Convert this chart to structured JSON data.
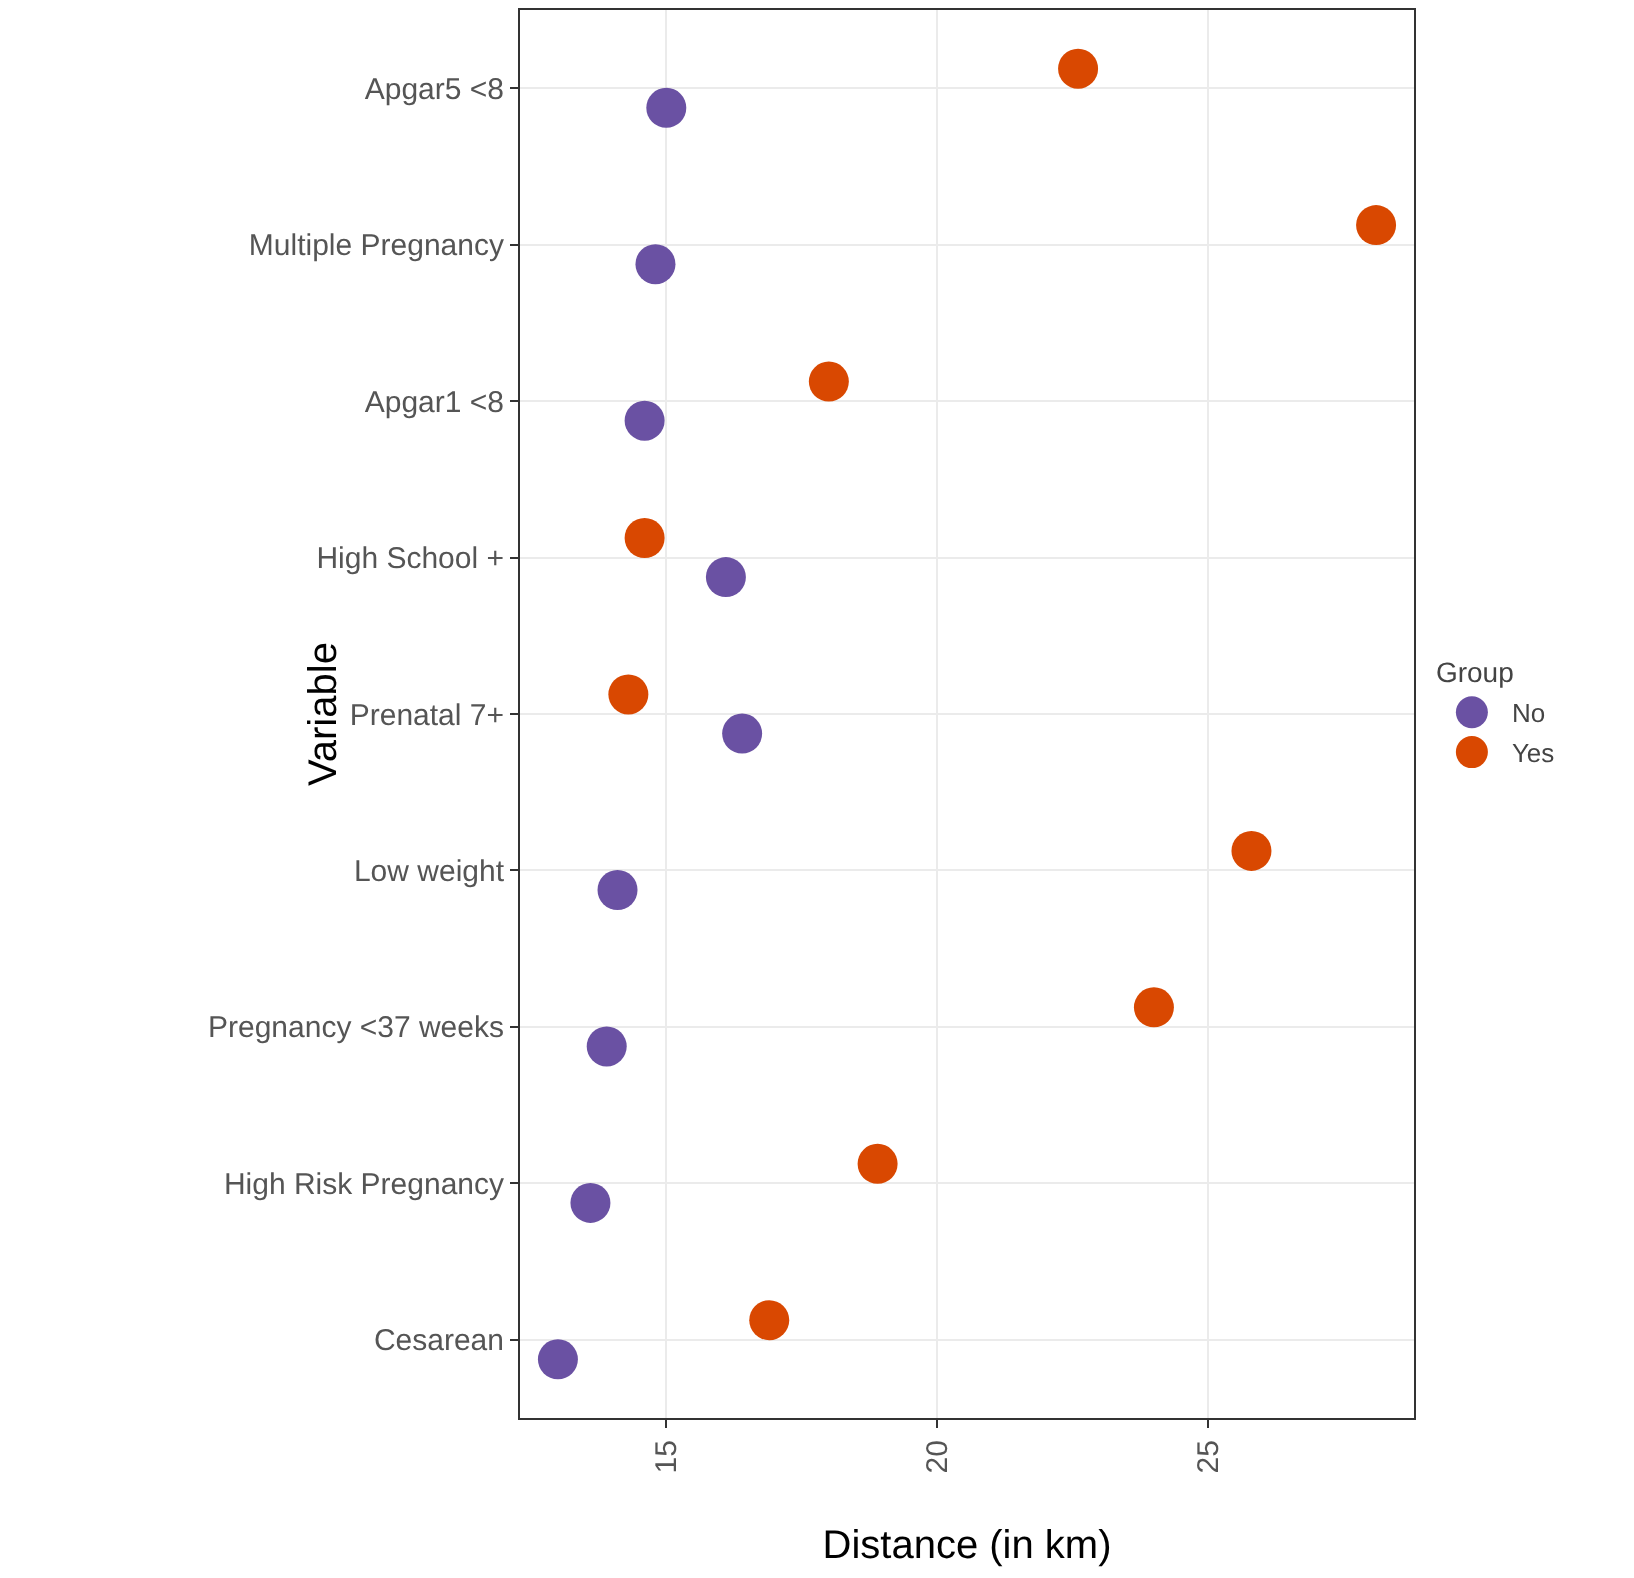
{
  "chart_data": {
    "type": "scatter",
    "xlabel": "Distance (in km)",
    "ylabel": "Variable",
    "legend_title": "Group",
    "categories": [
      "Apgar5 <8",
      "Multiple Pregnancy",
      "Apgar1 <8",
      "High School +",
      "Prenatal 7+",
      "Low weight",
      "Pregnancy <37 weeks",
      "High Risk Pregnancy",
      "Cesarean"
    ],
    "orientation": "horizontal",
    "series": [
      {
        "name": "No",
        "color": "#6a51a3",
        "values": [
          15.0,
          14.8,
          14.6,
          16.1,
          16.4,
          14.1,
          13.9,
          13.6,
          13.0
        ]
      },
      {
        "name": "Yes",
        "color": "#d94801",
        "values": [
          22.6,
          28.1,
          18.0,
          14.6,
          14.3,
          25.8,
          24.0,
          18.9,
          16.9
        ]
      }
    ],
    "xlim": [
      12.3,
      28.8
    ],
    "xticks": [
      15,
      20,
      25
    ],
    "grid": true,
    "legend": "right",
    "marker": "circle"
  }
}
